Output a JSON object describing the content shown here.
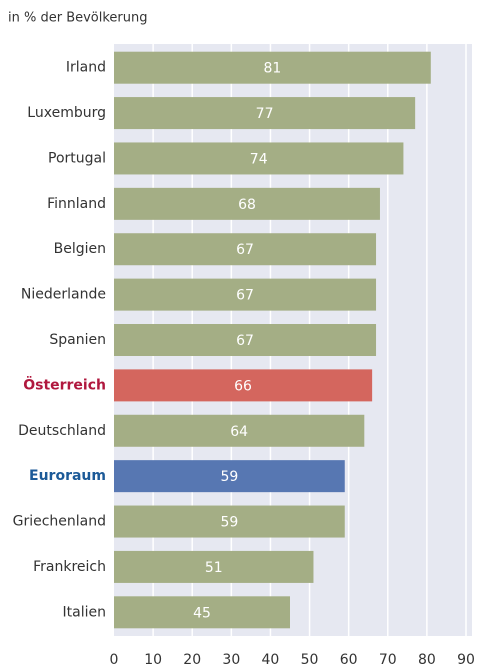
{
  "chart_data": {
    "type": "bar",
    "orientation": "horizontal",
    "subtitle": "in % der Bevölkerung",
    "categories": [
      "Irland",
      "Luxemburg",
      "Portugal",
      "Finnland",
      "Belgien",
      "Niederlande",
      "Spanien",
      "Österreich",
      "Deutschland",
      "Euroraum",
      "Griechenland",
      "Frankreich",
      "Italien"
    ],
    "values": [
      81,
      77,
      74,
      68,
      67,
      67,
      67,
      66,
      64,
      59,
      59,
      51,
      45
    ],
    "colors": [
      "#a4ae85",
      "#a4ae85",
      "#a4ae85",
      "#a4ae85",
      "#a4ae85",
      "#a4ae85",
      "#a4ae85",
      "#d4665e",
      "#a4ae85",
      "#5777b2",
      "#a4ae85",
      "#a4ae85",
      "#a4ae85"
    ],
    "label_colors": [
      "#333333",
      "#333333",
      "#333333",
      "#333333",
      "#333333",
      "#333333",
      "#333333",
      "#b0183e",
      "#333333",
      "#1c5a98",
      "#333333",
      "#333333",
      "#333333"
    ],
    "xlim": [
      0,
      90
    ],
    "xticks": [
      0,
      10,
      20,
      30,
      40,
      50,
      60,
      70,
      80,
      90
    ],
    "grid": true
  }
}
